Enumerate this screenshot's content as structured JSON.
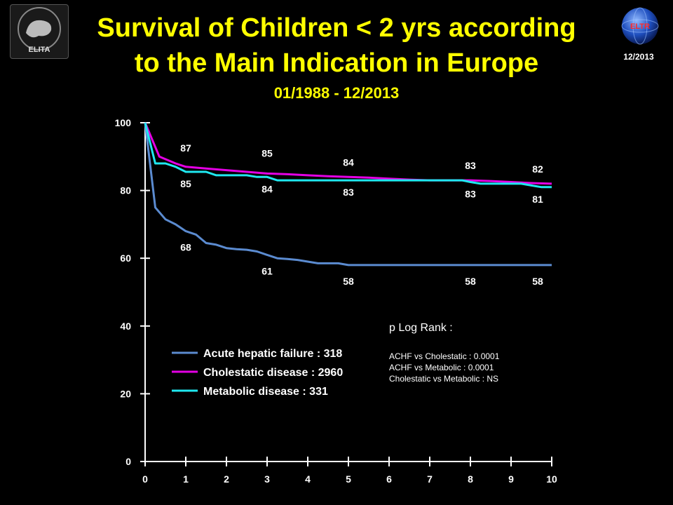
{
  "header": {
    "title_line1": "Survival of Children < 2 yrs according",
    "title_line2": "to the Main Indication in Europe",
    "subtitle": "01/1988 - 12/2013",
    "date_badge": "12/2013",
    "logo_left_text": "ELITA",
    "logo_right_text": "ELTR"
  },
  "colors": {
    "title": "#FFFF00",
    "background": "#000000",
    "acute": "#5B8BD0",
    "cholestatic": "#E400E4",
    "metabolic": "#1FE8F0"
  },
  "chart_data": {
    "type": "line",
    "title": "Survival of Children < 2 yrs according to the Main Indication in Europe",
    "xlabel": "",
    "ylabel": "",
    "xlim": [
      0,
      10
    ],
    "ylim": [
      0,
      100
    ],
    "x_ticks": [
      0,
      1,
      2,
      3,
      4,
      5,
      6,
      7,
      8,
      9,
      10
    ],
    "y_ticks": [
      0,
      20,
      40,
      60,
      80,
      100
    ],
    "grid": false,
    "legend_position": "lower-left",
    "series": [
      {
        "name": "Acute hepatic failure : 318",
        "color": "#5B8BD0",
        "x": [
          0,
          0.25,
          0.5,
          0.75,
          1,
          1.25,
          1.5,
          1.75,
          2,
          2.25,
          2.5,
          2.75,
          3,
          3.25,
          3.5,
          3.75,
          4,
          4.25,
          4.5,
          4.75,
          5,
          6,
          7,
          8,
          9,
          10
        ],
        "y": [
          100,
          75,
          71.5,
          70,
          68,
          67,
          64.5,
          64,
          63,
          62.7,
          62.5,
          62,
          61,
          60,
          59.8,
          59.5,
          59,
          58.5,
          58.5,
          58.5,
          58,
          58,
          58,
          58,
          58,
          58
        ]
      },
      {
        "name": "Cholestatic disease : 2960",
        "color": "#E400E4",
        "x": [
          0,
          0.35,
          0.75,
          1,
          1.5,
          2,
          2.5,
          3,
          3.5,
          4,
          4.5,
          5,
          5.5,
          6,
          6.5,
          7,
          7.5,
          8,
          8.5,
          9,
          9.5,
          10
        ],
        "y": [
          100,
          90,
          88,
          87,
          86.5,
          86,
          85.5,
          85,
          84.8,
          84.5,
          84.2,
          84,
          83.8,
          83.5,
          83.2,
          83,
          83,
          83,
          82.8,
          82.5,
          82.2,
          82
        ]
      },
      {
        "name": "Metabolic disease : 331",
        "color": "#1FE8F0",
        "x": [
          0,
          0.25,
          0.5,
          0.75,
          1,
          1.25,
          1.5,
          1.75,
          2,
          2.5,
          2.75,
          3,
          3.25,
          3.5,
          4,
          5,
          6,
          7,
          7.8,
          8,
          8.25,
          9,
          9.25,
          9.5,
          9.75,
          10
        ],
        "y": [
          100,
          88,
          88,
          87,
          85.5,
          85.5,
          85.5,
          84.5,
          84.5,
          84.5,
          84,
          84,
          83,
          83,
          83,
          83,
          83,
          83,
          83,
          82.5,
          82,
          82,
          82,
          81.5,
          81,
          81
        ]
      }
    ],
    "data_labels": [
      {
        "series": "Cholestatic disease : 2960",
        "x": 1,
        "text": "87"
      },
      {
        "series": "Cholestatic disease : 2960",
        "x": 3,
        "text": "85"
      },
      {
        "series": "Cholestatic disease : 2960",
        "x": 5,
        "text": "84"
      },
      {
        "series": "Cholestatic disease : 2960",
        "x": 8,
        "text": "83"
      },
      {
        "series": "Cholestatic disease : 2960",
        "x": 10,
        "text": "82"
      },
      {
        "series": "Metabolic disease : 331",
        "x": 1,
        "text": "85"
      },
      {
        "series": "Metabolic disease : 331",
        "x": 3,
        "text": "84"
      },
      {
        "series": "Metabolic disease : 331",
        "x": 5,
        "text": "83"
      },
      {
        "series": "Metabolic disease : 331",
        "x": 8,
        "text": "83"
      },
      {
        "series": "Metabolic disease : 331",
        "x": 10,
        "text": "81"
      },
      {
        "series": "Acute hepatic failure : 318",
        "x": 1,
        "text": "68"
      },
      {
        "series": "Acute hepatic failure : 318",
        "x": 3,
        "text": "61"
      },
      {
        "series": "Acute hepatic failure : 318",
        "x": 5,
        "text": "58"
      },
      {
        "series": "Acute hepatic failure : 318",
        "x": 8,
        "text": "58"
      },
      {
        "series": "Acute hepatic failure : 318",
        "x": 10,
        "text": "58"
      }
    ],
    "annotations": {
      "log_rank_title": "p Log Rank :",
      "lines": [
        "ACHF vs Cholestatic : 0.0001",
        "ACHF vs Metabolic : 0.0001",
        "Cholestatic vs Metabolic : NS"
      ]
    }
  }
}
